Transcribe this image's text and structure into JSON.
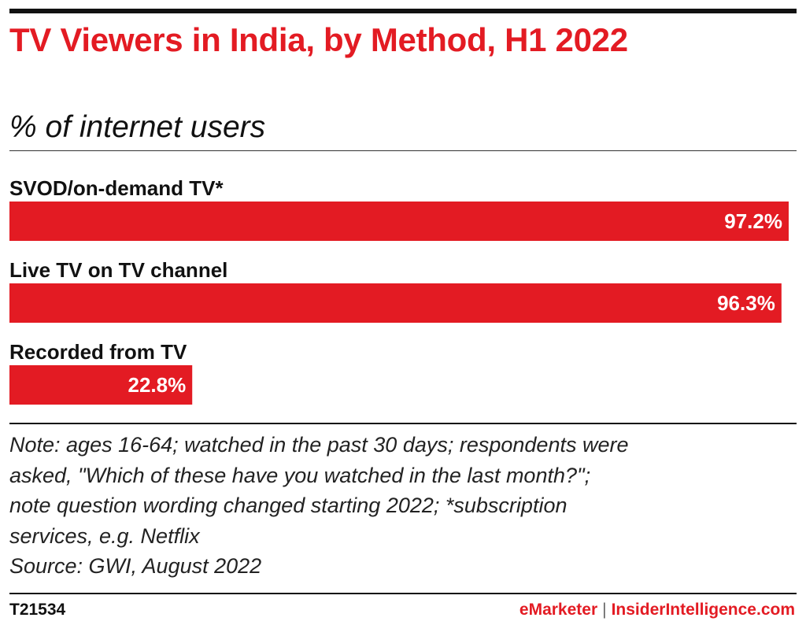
{
  "header": {
    "title": "TV Viewers in India, by Method, H1 2022",
    "subtitle": "% of internet users"
  },
  "chart_data": {
    "type": "bar",
    "orientation": "horizontal",
    "categories": [
      "SVOD/on-demand TV*",
      "Live TV on TV channel",
      "Recorded from TV"
    ],
    "values": [
      97.2,
      96.3,
      22.8
    ],
    "value_labels": [
      "97.2%",
      "96.3%",
      "22.8%"
    ],
    "xlim": [
      0,
      97.2
    ],
    "grid": false,
    "legend": "none",
    "bar_color": "#e31b23"
  },
  "note": {
    "lines": [
      "Note: ages 16-64; watched in the past 30 days; respondents were",
      "asked, \"Which of these have you watched in the last month?\";",
      "note question wording changed starting 2022; *subscription",
      "services, e.g. Netflix",
      "Source: GWI, August 2022"
    ]
  },
  "footer": {
    "chart_id": "T21534",
    "brand_emarketer": "eMarketer",
    "separator": "|",
    "brand_ii": "InsiderIntelligence.com"
  },
  "colors": {
    "accent": "#e31b23",
    "text": "#111111"
  }
}
